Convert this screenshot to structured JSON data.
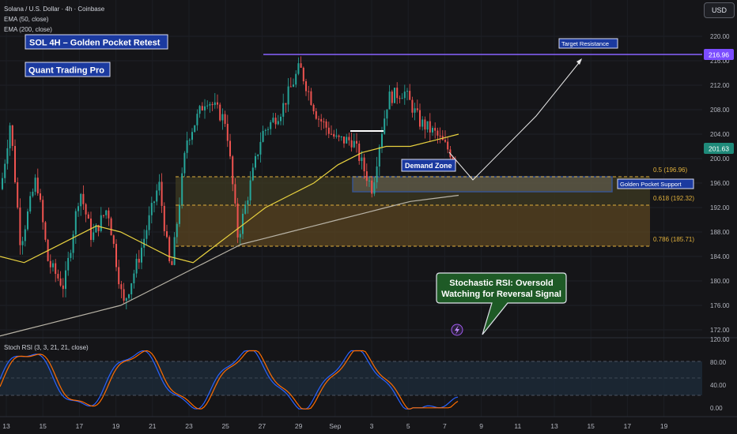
{
  "header": {
    "symbol_line": "Solana / U.S. Dollar · 4h · Coinbase",
    "ema50_label": "EMA (50, close)",
    "ema200_label": "EMA (200, close)",
    "currency_button": "USD"
  },
  "annotations": {
    "title_box": "SOL 4H – Golden Pocket Retest",
    "brand_box": "Quant Trading Pro",
    "target_label": "Target Resistance",
    "demand_label": "Demand Zone",
    "golden_label": "Golden Pocket Support",
    "stoch_callout_line1": "Stochastic RSI: Oversold",
    "stoch_callout_line2": "Watching for Reversal Signal"
  },
  "fib_levels": [
    {
      "label": "0.5 (196.96)",
      "price": 196.96
    },
    {
      "label": "0.618 (192.32)",
      "price": 192.32
    },
    {
      "label": "0.786 (185.71)",
      "price": 185.71
    }
  ],
  "price_badges": {
    "target": "216.96",
    "current": "201.63"
  },
  "price_axis_ticks": [
    "220.00",
    "216.00",
    "212.00",
    "208.00",
    "204.00",
    "200.00",
    "196.00",
    "192.00",
    "188.00",
    "184.00",
    "180.00",
    "176.00",
    "172.00"
  ],
  "stoch_panel": {
    "label": "Stoch RSI (3, 3, 21, 21, close)",
    "ticks": [
      "120.00",
      "80.00",
      "40.00",
      "0.00"
    ]
  },
  "time_axis": [
    "13",
    "15",
    "17",
    "19",
    "21",
    "23",
    "25",
    "27",
    "29",
    "Sep",
    "3",
    "5",
    "7",
    "9",
    "11",
    "13",
    "15",
    "17",
    "19"
  ],
  "colors": {
    "background": "#151518",
    "up_candle": "#26a69a",
    "down_candle": "#ef5350",
    "ema50": "#e8d13f",
    "ema200": "#b8b3a6",
    "target_line": "#8a63ff",
    "zone_fill": "#5a4d22",
    "label_box": "#1b3aa0",
    "callout_fill": "#1e5a26"
  },
  "chart_data": {
    "type": "candlestick",
    "symbol": "Solana / U.S. Dollar",
    "timeframe": "4h",
    "exchange": "Coinbase",
    "y_range": [
      170,
      223
    ],
    "last_price": 201.63,
    "target_resistance": 216.96,
    "ema50": [
      184,
      183,
      185,
      187,
      189,
      188,
      186,
      184,
      183,
      186,
      189,
      192,
      194,
      196,
      199,
      201,
      202,
      202,
      203,
      204
    ],
    "ema200": [
      171,
      172,
      173,
      174,
      175,
      176,
      178,
      180,
      182,
      184,
      186,
      187,
      188,
      189,
      190,
      191,
      192,
      193,
      193.5,
      194
    ],
    "stoch_rsi_range": [
      -10,
      120
    ],
    "stoch_rsi_levels": [
      80,
      20
    ]
  }
}
